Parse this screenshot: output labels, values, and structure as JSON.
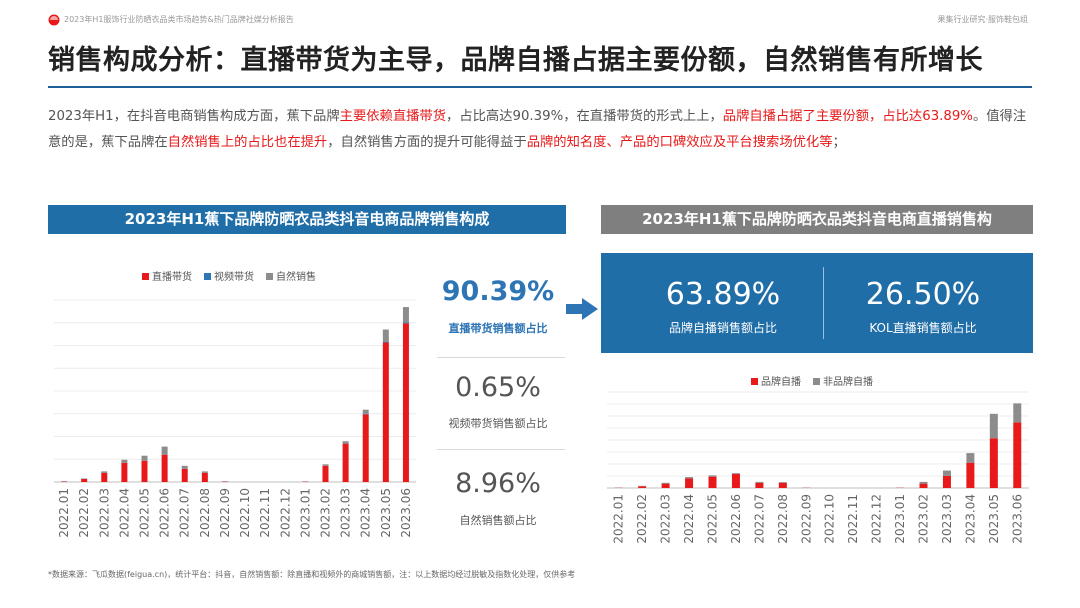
{
  "header": {
    "report_title": "2023年H1服饰行业防晒衣品类市场趋势&热门品牌社媒分析报告",
    "org": "果集行业研究·服饰鞋包组"
  },
  "headline": "销售构成分析：直播带货为主导，品牌自播占据主要份额，自然销售有所增长",
  "summary": {
    "p1": "2023年H1，在抖音电商销售构成方面，蕉下品牌",
    "h1": "主要依赖直播带货",
    "p2": "，占比高达90.39%，在直播带货的形式上上，",
    "h2": "品牌自播占据了主要份额，占比达63.89%",
    "p3": "。值得注意的是，蕉下品牌在",
    "h3": "自然销售上的占比也在提升",
    "p4": "，自然销售方面的提升可能得益于",
    "h4": "品牌的知名度、产品的口碑效应及平台搜索场优化等",
    "p5": "；"
  },
  "left_panel": {
    "banner": "2023年H1蕉下品牌防晒衣品类抖音电商品牌销售构成",
    "kpis": [
      {
        "value": "90.39%",
        "label": "直播带货销售额占比"
      },
      {
        "value": "0.65%",
        "label": "视频带货销售额占比"
      },
      {
        "value": "8.96%",
        "label": "自然销售额占比"
      }
    ]
  },
  "right_panel": {
    "banner": "2023年H1蕉下品牌防晒衣品类抖音电商直播销售构",
    "kpis": [
      {
        "value": "63.89%",
        "label": "品牌自播销售额占比"
      },
      {
        "value": "26.50%",
        "label": "KOL直播销售额占比"
      }
    ]
  },
  "colors": {
    "red": "#e8191a",
    "blue": "#2e75b6",
    "gray": "#8c8c8c",
    "navy": "#1f6ea8"
  },
  "chart_data": [
    {
      "type": "bar",
      "stacked": true,
      "categories": [
        "2022.01",
        "2022.02",
        "2022.03",
        "2022.04",
        "2022.05",
        "2022.06",
        "2022.07",
        "2022.08",
        "2022.09",
        "2022.10",
        "2022.11",
        "2022.12",
        "2023.01",
        "2023.02",
        "2023.03",
        "2023.04",
        "2023.05",
        "2023.06"
      ],
      "series": [
        {
          "name": "直播带货",
          "color": "#e8191a",
          "values": [
            0.5,
            3,
            9,
            19,
            21,
            27,
            13,
            9,
            0.4,
            0,
            0,
            0,
            0.4,
            16,
            38,
            67,
            138,
            157
          ]
        },
        {
          "name": "视频带货",
          "color": "#2e75b6",
          "values": [
            0,
            0,
            0,
            0,
            0,
            0,
            0,
            0,
            0,
            0,
            0,
            0,
            0,
            0,
            0.3,
            0.5,
            0.8,
            1
          ]
        },
        {
          "name": "自然销售",
          "color": "#8c8c8c",
          "values": [
            0.2,
            0.5,
            1.5,
            3,
            5,
            8,
            3,
            1.5,
            0.3,
            0,
            0,
            0,
            0.2,
            1.5,
            2,
            4,
            12,
            15
          ]
        }
      ],
      "ylim": [
        0,
        180
      ],
      "legend": "top-center",
      "grid": true
    },
    {
      "type": "bar",
      "stacked": true,
      "categories": [
        "2022.01",
        "2022.02",
        "2022.03",
        "2022.04",
        "2022.05",
        "2022.06",
        "2022.07",
        "2022.08",
        "2022.09",
        "2022.10",
        "2022.11",
        "2022.12",
        "2023.01",
        "2023.02",
        "2023.03",
        "2023.04",
        "2023.05",
        "2023.06"
      ],
      "series": [
        {
          "name": "品牌自播",
          "color": "#e8191a",
          "values": [
            0.3,
            2,
            5,
            11,
            13,
            16,
            6,
            6,
            0.3,
            0,
            0,
            0,
            0.3,
            5,
            14,
            29,
            57,
            75
          ]
        },
        {
          "name": "非品牌自播",
          "color": "#8c8c8c",
          "values": [
            0.2,
            0.5,
            1,
            1.5,
            1.5,
            1,
            1,
            0.8,
            0.2,
            0,
            0,
            0,
            0.1,
            2,
            6,
            11,
            28,
            22
          ]
        }
      ],
      "ylim": [
        0,
        110
      ],
      "legend": "top-center",
      "grid": true
    }
  ],
  "footnote": "*数据来源：飞瓜数据(feigua.cn)，统计平台：抖音，自然销售额：除直播和视频外的商城销售额，注：以上数据均经过脱敏及指数化处理，仅供参考"
}
